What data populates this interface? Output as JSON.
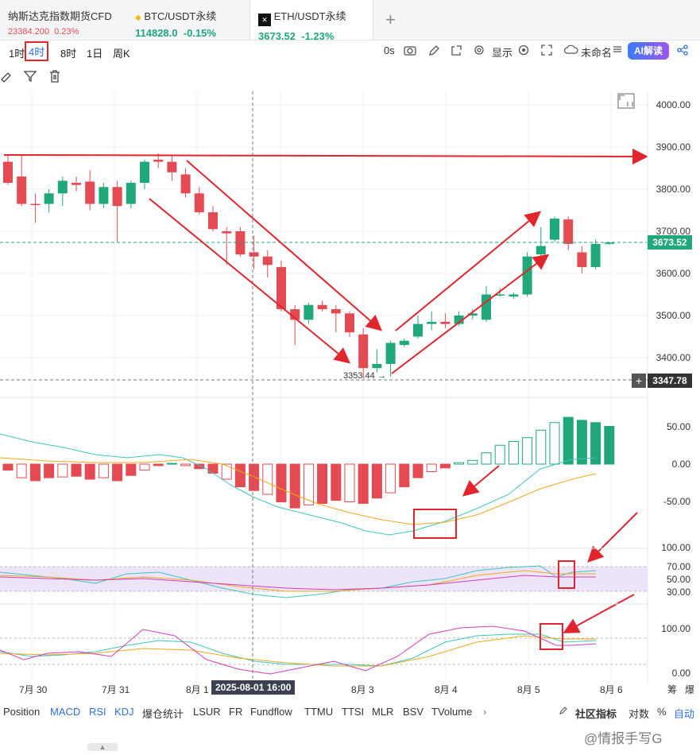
{
  "tabs": [
    {
      "name": "纳斯达克指数期货CFD",
      "price": "23384.200",
      "change": "0.23%"
    },
    {
      "name": "BTC/USDT永续",
      "price": "114828.0",
      "change": "-0.15%"
    },
    {
      "name": "ETH/USDT永续",
      "price": "3673.52",
      "change": "-1.23%"
    }
  ],
  "add_tab_label": "+",
  "timeframes": [
    "1时",
    "4时",
    "8时",
    "1日",
    "周K"
  ],
  "selected_timeframe": "4时",
  "toolbar": {
    "countdown": "0s",
    "display_label": "显示",
    "layout_name": "未命名",
    "ai_label": "AI解读"
  },
  "price_axis": [
    "4000.00",
    "3900.00",
    "3800.00",
    "3700.00",
    "3600.00",
    "3500.00",
    "3400.00"
  ],
  "current_price": "3673.52",
  "crosshair_price": "3347.78",
  "low_annotation": "3353.44 →",
  "macd_axis": [
    "50.00",
    "0.00",
    "-50.00"
  ],
  "rsi_axis": [
    "100.00",
    "70.00",
    "50.00",
    "30.00"
  ],
  "kdj_axis": [
    "100.00",
    "0.00"
  ],
  "x_dates": [
    "7月 30",
    "7月 31",
    "8月 1",
    "8月 3",
    "8月 4",
    "8月 5",
    "8月 6"
  ],
  "crosshair_date": "2025-08-01 16:00",
  "axis_corner": [
    "筹",
    "爆"
  ],
  "indicator_tabs": [
    "Position",
    "MACD",
    "RSI",
    "KDJ",
    "爆仓统计",
    "LSUR",
    "FR",
    "Fundflow",
    "TTMU",
    "TTSI",
    "MLR",
    "BSV",
    "TVolume"
  ],
  "active_indicators": [
    "MACD",
    "RSI",
    "KDJ"
  ],
  "indicator_more": "›",
  "community_label": "社区指标",
  "scale_options": [
    "对数",
    "%",
    "自动"
  ],
  "watermark": "@情报手写G",
  "colors": {
    "up": "#20a77a",
    "down": "#e34a52",
    "accent": "#2f6fde",
    "annotation": "#e0262c"
  },
  "chart_data": {
    "type": "candlestick",
    "title": "ETH/USDT永续 4时",
    "ylim": [
      3330,
      4050
    ],
    "candles": [
      {
        "o": 3865,
        "h": 3880,
        "l": 3810,
        "c": 3815
      },
      {
        "o": 3830,
        "h": 3880,
        "l": 3760,
        "c": 3765
      },
      {
        "o": 3765,
        "h": 3790,
        "l": 3720,
        "c": 3764
      },
      {
        "o": 3765,
        "h": 3800,
        "l": 3745,
        "c": 3790
      },
      {
        "o": 3790,
        "h": 3830,
        "l": 3760,
        "c": 3820
      },
      {
        "o": 3815,
        "h": 3830,
        "l": 3795,
        "c": 3810
      },
      {
        "o": 3818,
        "h": 3845,
        "l": 3750,
        "c": 3765
      },
      {
        "o": 3765,
        "h": 3815,
        "l": 3755,
        "c": 3805
      },
      {
        "o": 3805,
        "h": 3820,
        "l": 3675,
        "c": 3760
      },
      {
        "o": 3765,
        "h": 3820,
        "l": 3755,
        "c": 3815
      },
      {
        "o": 3815,
        "h": 3870,
        "l": 3800,
        "c": 3865
      },
      {
        "o": 3870,
        "h": 3885,
        "l": 3850,
        "c": 3865
      },
      {
        "o": 3865,
        "h": 3880,
        "l": 3820,
        "c": 3840
      },
      {
        "o": 3835,
        "h": 3850,
        "l": 3780,
        "c": 3790
      },
      {
        "o": 3790,
        "h": 3805,
        "l": 3740,
        "c": 3745
      },
      {
        "o": 3745,
        "h": 3760,
        "l": 3700,
        "c": 3705
      },
      {
        "o": 3700,
        "h": 3710,
        "l": 3620,
        "c": 3695
      },
      {
        "o": 3700,
        "h": 3710,
        "l": 3640,
        "c": 3645
      },
      {
        "o": 3650,
        "h": 3690,
        "l": 3610,
        "c": 3640
      },
      {
        "o": 3640,
        "h": 3655,
        "l": 3590,
        "c": 3620
      },
      {
        "o": 3615,
        "h": 3630,
        "l": 3510,
        "c": 3515
      },
      {
        "o": 3515,
        "h": 3525,
        "l": 3430,
        "c": 3490
      },
      {
        "o": 3490,
        "h": 3530,
        "l": 3480,
        "c": 3525
      },
      {
        "o": 3525,
        "h": 3535,
        "l": 3510,
        "c": 3515
      },
      {
        "o": 3515,
        "h": 3525,
        "l": 3460,
        "c": 3505
      },
      {
        "o": 3505,
        "h": 3510,
        "l": 3450,
        "c": 3460
      },
      {
        "o": 3455,
        "h": 3470,
        "l": 3353,
        "c": 3375
      },
      {
        "o": 3375,
        "h": 3420,
        "l": 3365,
        "c": 3385
      },
      {
        "o": 3385,
        "h": 3440,
        "l": 3355,
        "c": 3435
      },
      {
        "o": 3430,
        "h": 3445,
        "l": 3425,
        "c": 3440
      },
      {
        "o": 3450,
        "h": 3500,
        "l": 3445,
        "c": 3480
      },
      {
        "o": 3480,
        "h": 3510,
        "l": 3465,
        "c": 3485
      },
      {
        "o": 3485,
        "h": 3505,
        "l": 3470,
        "c": 3480
      },
      {
        "o": 3480,
        "h": 3510,
        "l": 3475,
        "c": 3500
      },
      {
        "o": 3500,
        "h": 3515,
        "l": 3490,
        "c": 3505
      },
      {
        "o": 3490,
        "h": 3570,
        "l": 3485,
        "c": 3550
      },
      {
        "o": 3550,
        "h": 3565,
        "l": 3545,
        "c": 3550
      },
      {
        "o": 3545,
        "h": 3555,
        "l": 3540,
        "c": 3550
      },
      {
        "o": 3550,
        "h": 3650,
        "l": 3545,
        "c": 3640
      },
      {
        "o": 3645,
        "h": 3710,
        "l": 3635,
        "c": 3665
      },
      {
        "o": 3680,
        "h": 3735,
        "l": 3675,
        "c": 3730
      },
      {
        "o": 3728,
        "h": 3735,
        "l": 3655,
        "c": 3670
      },
      {
        "o": 3650,
        "h": 3665,
        "l": 3600,
        "c": 3615
      },
      {
        "o": 3615,
        "h": 3680,
        "l": 3610,
        "c": 3670
      },
      {
        "o": 3670,
        "h": 3675,
        "l": 3668,
        "c": 3673
      }
    ],
    "macd_histogram": [
      -8,
      -18,
      -22,
      -18,
      -17,
      -16,
      -20,
      -18,
      -22,
      -15,
      -8,
      -2,
      1,
      -2,
      -6,
      -12,
      -20,
      -30,
      -35,
      -40,
      -50,
      -58,
      -54,
      -52,
      -48,
      -50,
      -52,
      -45,
      -38,
      -30,
      -18,
      -10,
      -5,
      2,
      5,
      15,
      25,
      30,
      35,
      45,
      55,
      62,
      58,
      55,
      50
    ],
    "rsi_range": [
      0,
      100
    ],
    "kdj_range": [
      0,
      100
    ]
  }
}
